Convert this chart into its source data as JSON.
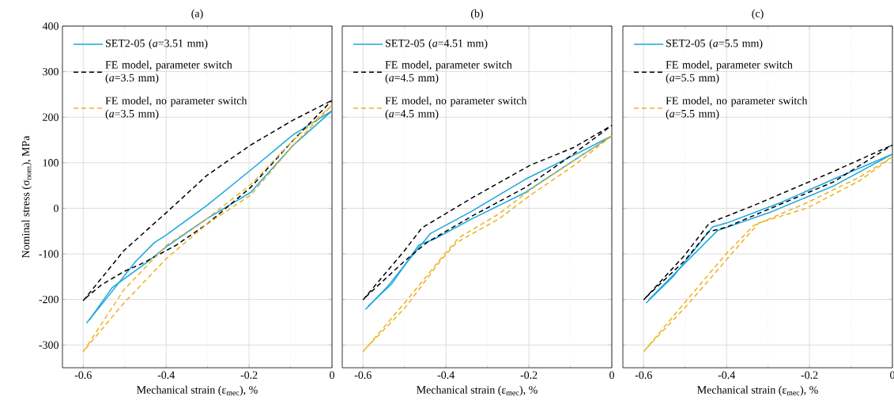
{
  "chart_data": [
    {
      "type": "line",
      "title": "(a)",
      "xlabel": "Mechanical strain (ε$_{mec}$), %",
      "ylabel": "Nominal stress (σ$_{nom}$), MPa",
      "xlim": [
        -0.65,
        0
      ],
      "ylim": [
        -350,
        400
      ],
      "xticks": [
        -0.6,
        {
          "value": -0.5,
          "label": null
        },
        -0.4,
        {
          "value": -0.3,
          "label": null
        },
        -0.2,
        {
          "value": -0.1,
          "label": null
        },
        0
      ],
      "yticks": [
        -300,
        -200,
        -100,
        0,
        100,
        200,
        300,
        400
      ],
      "grid": true,
      "legend": "top left",
      "series": [
        {
          "name": "SET2-05 (*a*=3.51 mm)",
          "color": "#1aa6df",
          "line_style": "solid",
          "x": [
            -0.592,
            -0.543,
            -0.473,
            -0.428,
            -0.399,
            -0.302,
            -0.196,
            -0.093,
            0
          ],
          "values": [
            -252,
            -197,
            -116,
            -75,
            -58,
            6,
            84,
            162,
            214
          ]
        },
        {
          "color": "#1aa6df",
          "line_style": "solid",
          "x": [
            -0.585,
            -0.53,
            -0.447,
            -0.399,
            -0.302,
            -0.196,
            -0.093,
            0
          ],
          "values": [
            -245,
            -174,
            -119,
            -84,
            -23,
            35,
            139,
            214
          ]
        },
        {
          "name": "FE model, parameter switch (*a*=3.5 mm)",
          "color": "#000000",
          "line_style": "dashed",
          "x": [
            -0.6,
            -0.502,
            -0.399,
            -0.302,
            -0.196,
            -0.093,
            0
          ],
          "values": [
            -203,
            -93,
            -9,
            72,
            139,
            194,
            237
          ]
        },
        {
          "color": "#000000",
          "line_style": "dashed",
          "x": [
            -0.594,
            -0.556,
            -0.502,
            -0.453,
            -0.376,
            -0.302,
            -0.196,
            -0.093,
            0
          ],
          "values": [
            -197,
            -168,
            -139,
            -119,
            -81,
            -35,
            46,
            150,
            237
          ]
        },
        {
          "name": "FE model, no parameter switch (*a*=3.5 mm)",
          "color": "#edb120",
          "line_style": "dashed",
          "x": [
            -0.6,
            -0.502,
            -0.399,
            -0.302,
            -0.196,
            -0.093,
            0
          ],
          "values": [
            -315,
            -179,
            -81,
            -23,
            52,
            150,
            226
          ]
        },
        {
          "color": "#edb120",
          "line_style": "dashed",
          "x": [
            -0.594,
            -0.502,
            -0.399,
            -0.302,
            -0.196,
            -0.093,
            0
          ],
          "values": [
            -308,
            -208,
            -110,
            -35,
            29,
            139,
            226
          ]
        }
      ]
    },
    {
      "type": "line",
      "title": "(b)",
      "xlabel": "Mechanical strain (ε$_{mec}$), %",
      "xlim": [
        -0.65,
        0
      ],
      "ylim": [
        -350,
        400
      ],
      "xticks": [
        -0.6,
        {
          "value": -0.5,
          "label": null
        },
        -0.4,
        {
          "value": -0.3,
          "label": null
        },
        -0.2,
        {
          "value": -0.1,
          "label": null
        },
        0
      ],
      "yticks": [
        -300,
        -200,
        -100,
        0,
        100,
        200,
        300,
        400
      ],
      "tick_labels": "x",
      "grid": true,
      "legend": "top left",
      "series": [
        {
          "name": "SET2-05 (*a*=4.51 mm)",
          "color": "#1aa6df",
          "line_style": "solid",
          "x": [
            -0.594,
            -0.543,
            -0.466,
            -0.437,
            -0.337,
            -0.208,
            -0.093,
            0
          ],
          "values": [
            -222,
            -174,
            -87,
            -55,
            -6,
            64,
            116,
            159
          ]
        },
        {
          "color": "#1aa6df",
          "line_style": "solid",
          "x": [
            -0.588,
            -0.53,
            -0.466,
            -0.427,
            -0.337,
            -0.208,
            -0.093,
            0
          ],
          "values": [
            -215,
            -165,
            -81,
            -67,
            -23,
            35,
            104,
            159
          ]
        },
        {
          "name": "FE model, parameter switch (*a*=4.5 mm)",
          "color": "#000000",
          "line_style": "dashed",
          "x": [
            -0.6,
            -0.5,
            -0.458,
            -0.337,
            -0.196,
            -0.093,
            0
          ],
          "values": [
            -201,
            -93,
            -43,
            23,
            95,
            133,
            182
          ]
        },
        {
          "color": "#000000",
          "line_style": "dashed",
          "x": [
            -0.594,
            -0.5,
            -0.446,
            -0.337,
            -0.208,
            -0.093,
            0
          ],
          "values": [
            -195,
            -116,
            -75,
            -17,
            46,
            119,
            182
          ]
        },
        {
          "name": "FE model, no parameter switch (*a*=4.5 mm)",
          "color": "#edb120",
          "line_style": "dashed",
          "x": [
            -0.6,
            -0.5,
            -0.401,
            -0.368,
            -0.272,
            -0.196,
            -0.093,
            0
          ],
          "values": [
            -315,
            -208,
            -98,
            -64,
            -12,
            41,
            104,
            159
          ]
        },
        {
          "color": "#edb120",
          "line_style": "dashed",
          "x": [
            -0.594,
            -0.5,
            -0.414,
            -0.374,
            -0.272,
            -0.196,
            -0.093,
            0
          ],
          "values": [
            -308,
            -220,
            -116,
            -75,
            -23,
            29,
            93,
            159
          ]
        }
      ]
    },
    {
      "type": "line",
      "title": "(c)",
      "xlabel": "Mechanical strain (ε$_{mec}$), %",
      "xlim": [
        -0.65,
        0
      ],
      "ylim": [
        -350,
        400
      ],
      "xticks": [
        -0.6,
        {
          "value": -0.5,
          "label": null
        },
        -0.4,
        {
          "value": -0.3,
          "label": null
        },
        -0.2,
        {
          "value": -0.1,
          "label": null
        },
        0
      ],
      "yticks": [
        -300,
        -200,
        -100,
        0,
        100,
        200,
        300,
        400
      ],
      "tick_labels": "x",
      "grid": true,
      "legend": "top left",
      "series": [
        {
          "name": "SET2-05 (*a*=5.5 mm)",
          "color": "#1aa6df",
          "line_style": "solid",
          "x": [
            -0.594,
            -0.527,
            -0.434,
            -0.399,
            -0.271,
            -0.142,
            0
          ],
          "values": [
            -208,
            -148,
            -41,
            -32,
            12,
            64,
            119
          ]
        },
        {
          "color": "#1aa6df",
          "line_style": "solid",
          "x": [
            -0.588,
            -0.502,
            -0.422,
            -0.296,
            -0.142,
            0
          ],
          "values": [
            -201,
            -122,
            -49,
            -9,
            49,
            119
          ]
        },
        {
          "name": "FE model, parameter switch (*a*=5.5 mm)",
          "color": "#000000",
          "line_style": "dashed",
          "x": [
            -0.6,
            -0.502,
            -0.441,
            -0.335,
            -0.142,
            0
          ],
          "values": [
            -201,
            -104,
            -32,
            6,
            81,
            139
          ]
        },
        {
          "color": "#000000",
          "line_style": "dashed",
          "x": [
            -0.594,
            -0.502,
            -0.444,
            -0.399,
            -0.309,
            -0.142,
            0
          ],
          "values": [
            -195,
            -116,
            -52,
            -41,
            -6,
            58,
            139
          ]
        },
        {
          "name": "FE model, no parameter switch (*a*=5.5 mm)",
          "color": "#edb120",
          "line_style": "dashed",
          "x": [
            -0.6,
            -0.502,
            -0.399,
            -0.335,
            -0.207,
            -0.078,
            0
          ],
          "values": [
            -315,
            -208,
            -98,
            -38,
            12,
            69,
            113
          ]
        },
        {
          "color": "#edb120",
          "line_style": "dashed",
          "x": [
            -0.594,
            -0.502,
            -0.386,
            -0.322,
            -0.207,
            -0.078,
            0
          ],
          "values": [
            -308,
            -220,
            -98,
            -32,
            0,
            61,
            113
          ]
        }
      ]
    }
  ]
}
